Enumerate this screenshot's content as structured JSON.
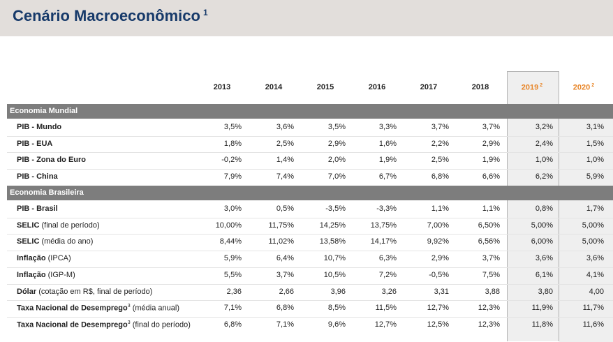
{
  "header": {
    "title": "Cenário Macroeconômico",
    "sup": "1"
  },
  "table": {
    "columns": [
      {
        "year": "2013"
      },
      {
        "year": "2014"
      },
      {
        "year": "2015"
      },
      {
        "year": "2016"
      },
      {
        "year": "2017"
      },
      {
        "year": "2018"
      },
      {
        "year": "2019",
        "sup": "2"
      },
      {
        "year": "2020",
        "sup": "2"
      }
    ],
    "sections": [
      {
        "title": "Economia Mundial",
        "rows": [
          {
            "label": "PIB - Mundo",
            "values": [
              "3,5%",
              "3,6%",
              "3,5%",
              "3,3%",
              "3,7%",
              "3,7%",
              "3,2%",
              "3,1%"
            ]
          },
          {
            "label": "PIB - EUA",
            "values": [
              "1,8%",
              "2,5%",
              "2,9%",
              "1,6%",
              "2,2%",
              "2,9%",
              "2,4%",
              "1,5%"
            ]
          },
          {
            "label": "PIB - Zona do Euro",
            "values": [
              "-0,2%",
              "1,4%",
              "2,0%",
              "1,9%",
              "2,5%",
              "1,9%",
              "1,0%",
              "1,0%"
            ]
          },
          {
            "label": "PIB - China",
            "values": [
              "7,9%",
              "7,4%",
              "7,0%",
              "6,7%",
              "6,8%",
              "6,6%",
              "6,2%",
              "5,9%"
            ]
          }
        ]
      },
      {
        "title": "Economia Brasileira",
        "rows": [
          {
            "label": "PIB - Brasil",
            "values": [
              "3,0%",
              "0,5%",
              "-3,5%",
              "-3,3%",
              "1,1%",
              "1,1%",
              "0,8%",
              "1,7%"
            ]
          },
          {
            "label": "SELIC",
            "note": "(final de período)",
            "values": [
              "10,00%",
              "11,75%",
              "14,25%",
              "13,75%",
              "7,00%",
              "6,50%",
              "5,00%",
              "5,00%"
            ]
          },
          {
            "label": "SELIC",
            "note": "(média do ano)",
            "values": [
              "8,44%",
              "11,02%",
              "13,58%",
              "14,17%",
              "9,92%",
              "6,56%",
              "6,00%",
              "5,00%"
            ]
          },
          {
            "label": "Inflação",
            "note": "(IPCA)",
            "values": [
              "5,9%",
              "6,4%",
              "10,7%",
              "6,3%",
              "2,9%",
              "3,7%",
              "3,6%",
              "3,6%"
            ]
          },
          {
            "label": "Inflação",
            "note": "(IGP-M)",
            "values": [
              "5,5%",
              "3,7%",
              "10,5%",
              "7,2%",
              "-0,5%",
              "7,5%",
              "6,1%",
              "4,1%"
            ]
          },
          {
            "label": "Dólar",
            "note": "(cotação em R$, final de período)",
            "values": [
              "2,36",
              "2,66",
              "3,96",
              "3,26",
              "3,31",
              "3,88",
              "3,80",
              "4,00"
            ]
          },
          {
            "label": "Taxa Nacional de Desemprego",
            "sup": "3",
            "note": "(média anual)",
            "values": [
              "7,1%",
              "6,8%",
              "8,5%",
              "11,5%",
              "12,7%",
              "12,3%",
              "11,9%",
              "11,7%"
            ]
          },
          {
            "label": "Taxa Nacional de Desemprego",
            "sup": "3",
            "note": "(final do período)",
            "values": [
              "6,8%",
              "7,1%",
              "9,6%",
              "12,7%",
              "12,5%",
              "12,3%",
              "11,8%",
              "11,6%"
            ]
          }
        ]
      }
    ]
  }
}
